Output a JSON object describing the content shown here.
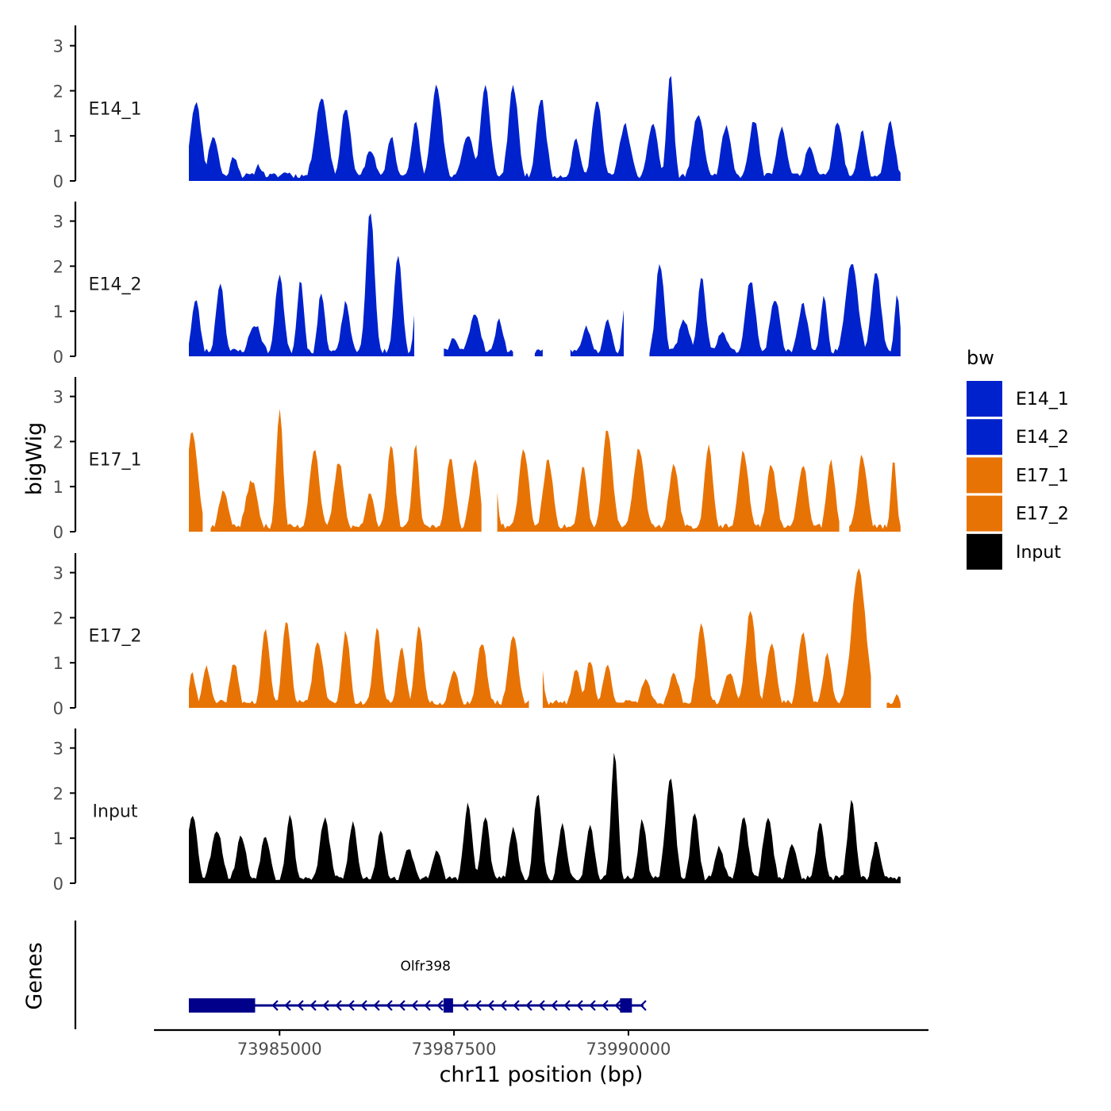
{
  "colors": {
    "E14": "#0022CC",
    "E17": "#E87305",
    "Input": "#000000",
    "gene": "#00008B",
    "axis": "#000000",
    "tick_text": "#4D4D4D"
  },
  "chart_data": {
    "type": "area",
    "ylabel": "bigWig",
    "xlabel": "chr11 position (bp)",
    "genes_label": "Genes",
    "ylim": [
      0,
      3.4
    ],
    "y_ticks": [
      "0",
      "1",
      "2",
      "3"
    ],
    "x_range": [
      73983200,
      73994300
    ],
    "x_data_range": [
      73983700,
      73993900
    ],
    "x_ticks": [
      {
        "value": 73985000,
        "label": "73985000"
      },
      {
        "value": 73987500,
        "label": "73987500"
      },
      {
        "value": 73990000,
        "label": "73990000"
      }
    ],
    "legend": {
      "title": "bw",
      "position": "right",
      "entries": [
        {
          "label": "E14_1",
          "color": "#0022CC"
        },
        {
          "label": "E14_2",
          "color": "#0022CC"
        },
        {
          "label": "E17_1",
          "color": "#E87305"
        },
        {
          "label": "E17_2",
          "color": "#E87305"
        },
        {
          "label": "Input",
          "color": "#000000"
        }
      ]
    },
    "tracks": [
      {
        "name": "E14_1",
        "color": "#0022CC",
        "seed": 11,
        "peaks": [
          [
            73983800,
            1.75,
            80
          ],
          [
            73984050,
            1.0,
            70
          ],
          [
            73984350,
            0.55,
            60
          ],
          [
            73984700,
            0.35,
            60
          ],
          [
            73985100,
            0.2,
            80
          ],
          [
            73985600,
            1.85,
            90
          ],
          [
            73985950,
            1.65,
            70
          ],
          [
            73986300,
            0.7,
            70
          ],
          [
            73986600,
            1.0,
            60
          ],
          [
            73986950,
            1.3,
            60
          ],
          [
            73987250,
            2.1,
            80
          ],
          [
            73987700,
            1.0,
            90
          ],
          [
            73987950,
            2.1,
            70
          ],
          [
            73988350,
            2.1,
            70
          ],
          [
            73988750,
            1.85,
            70
          ],
          [
            73989250,
            0.95,
            60
          ],
          [
            73989550,
            1.85,
            70
          ],
          [
            73989950,
            1.25,
            80
          ],
          [
            73990350,
            1.3,
            70
          ],
          [
            73990600,
            2.4,
            50
          ],
          [
            73991000,
            1.5,
            80
          ],
          [
            73991400,
            1.2,
            70
          ],
          [
            73991800,
            1.35,
            70
          ],
          [
            73992200,
            1.2,
            70
          ],
          [
            73992600,
            0.8,
            70
          ],
          [
            73993000,
            1.35,
            70
          ],
          [
            73993350,
            1.1,
            60
          ],
          [
            73993750,
            1.3,
            70
          ]
        ],
        "gaps": []
      },
      {
        "name": "E14_2",
        "color": "#0022CC",
        "seed": 23,
        "peaks": [
          [
            73983800,
            1.25,
            60
          ],
          [
            73984150,
            1.65,
            60
          ],
          [
            73984650,
            0.7,
            90
          ],
          [
            73985000,
            1.85,
            60
          ],
          [
            73985300,
            1.7,
            50
          ],
          [
            73985600,
            1.45,
            50
          ],
          [
            73985950,
            1.2,
            60
          ],
          [
            73986300,
            3.25,
            60
          ],
          [
            73986700,
            2.25,
            60
          ],
          [
            73987000,
            2.3,
            50
          ],
          [
            73987500,
            0.4,
            60
          ],
          [
            73987800,
            0.95,
            80
          ],
          [
            73988150,
            0.8,
            60
          ],
          [
            73988450,
            0.55,
            50
          ],
          [
            73989000,
            0.3,
            50
          ],
          [
            73989400,
            0.65,
            70
          ],
          [
            73989700,
            0.85,
            60
          ],
          [
            73989950,
            1.15,
            40
          ],
          [
            73990450,
            2.1,
            60
          ],
          [
            73990800,
            0.8,
            80
          ],
          [
            73991050,
            1.75,
            60
          ],
          [
            73991350,
            0.5,
            90
          ],
          [
            73991750,
            1.7,
            70
          ],
          [
            73992100,
            1.3,
            70
          ],
          [
            73992500,
            1.15,
            70
          ],
          [
            73992800,
            1.3,
            50
          ],
          [
            73993200,
            2.1,
            90
          ],
          [
            73993550,
            1.9,
            70
          ],
          [
            73993850,
            1.35,
            40
          ]
        ],
        "gaps": [
          [
            73986950,
            73987350
          ],
          [
            73988350,
            73988650
          ],
          [
            73988800,
            73989150
          ],
          [
            73989950,
            73990300
          ]
        ]
      },
      {
        "name": "E17_1",
        "color": "#E87305",
        "seed": 37,
        "peaks": [
          [
            73983750,
            2.25,
            80
          ],
          [
            73984200,
            0.9,
            70
          ],
          [
            73984600,
            1.15,
            80
          ],
          [
            73985000,
            2.7,
            50
          ],
          [
            73985500,
            1.85,
            70
          ],
          [
            73985850,
            1.55,
            70
          ],
          [
            73986300,
            0.9,
            60
          ],
          [
            73986600,
            1.9,
            60
          ],
          [
            73986950,
            1.9,
            50
          ],
          [
            73987450,
            1.6,
            70
          ],
          [
            73987800,
            1.6,
            70
          ],
          [
            73988050,
            1.65,
            60
          ],
          [
            73988500,
            1.85,
            70
          ],
          [
            73988850,
            1.6,
            70
          ],
          [
            73989350,
            1.45,
            60
          ],
          [
            73989700,
            2.3,
            70
          ],
          [
            73990150,
            1.85,
            80
          ],
          [
            73990650,
            1.5,
            70
          ],
          [
            73991150,
            1.95,
            60
          ],
          [
            73991650,
            1.8,
            70
          ],
          [
            73992050,
            1.5,
            70
          ],
          [
            73992500,
            1.5,
            70
          ],
          [
            73992900,
            1.6,
            60
          ],
          [
            73993350,
            1.7,
            70
          ],
          [
            73993800,
            1.6,
            40
          ]
        ],
        "gaps": [
          [
            73983900,
            73984000
          ],
          [
            73987900,
            73988100
          ],
          [
            73993050,
            73993150
          ]
        ]
      },
      {
        "name": "E17_2",
        "color": "#E87305",
        "seed": 41,
        "peaks": [
          [
            73983750,
            0.75,
            50
          ],
          [
            73983950,
            0.9,
            60
          ],
          [
            73984350,
            1.0,
            60
          ],
          [
            73984800,
            1.75,
            60
          ],
          [
            73985100,
            2.0,
            60
          ],
          [
            73985550,
            1.5,
            70
          ],
          [
            73985950,
            1.7,
            60
          ],
          [
            73986400,
            1.75,
            60
          ],
          [
            73986750,
            1.4,
            60
          ],
          [
            73987000,
            1.8,
            60
          ],
          [
            73987500,
            0.8,
            70
          ],
          [
            73987900,
            1.45,
            70
          ],
          [
            73988350,
            1.65,
            70
          ],
          [
            73988700,
            1.65,
            60
          ],
          [
            73989250,
            0.9,
            60
          ],
          [
            73989450,
            1.05,
            60
          ],
          [
            73989700,
            1.0,
            60
          ],
          [
            73990250,
            0.65,
            70
          ],
          [
            73990650,
            0.8,
            70
          ],
          [
            73991050,
            1.85,
            70
          ],
          [
            73991450,
            0.8,
            80
          ],
          [
            73991750,
            2.2,
            70
          ],
          [
            73992050,
            1.45,
            70
          ],
          [
            73992500,
            1.65,
            70
          ],
          [
            73992850,
            1.2,
            60
          ],
          [
            73993300,
            3.1,
            100
          ],
          [
            73993850,
            0.35,
            40
          ]
        ],
        "gaps": [
          [
            73988600,
            73988750
          ],
          [
            73993500,
            73993700
          ]
        ]
      },
      {
        "name": "Input",
        "color": "#000000",
        "seed": 53,
        "peaks": [
          [
            73983750,
            1.55,
            70
          ],
          [
            73984100,
            1.2,
            80
          ],
          [
            73984450,
            1.05,
            70
          ],
          [
            73984800,
            1.05,
            70
          ],
          [
            73985150,
            1.5,
            60
          ],
          [
            73985650,
            1.45,
            70
          ],
          [
            73986050,
            1.35,
            60
          ],
          [
            73986450,
            1.2,
            60
          ],
          [
            73986850,
            0.8,
            70
          ],
          [
            73987250,
            0.7,
            70
          ],
          [
            73987700,
            1.75,
            60
          ],
          [
            73987950,
            1.5,
            60
          ],
          [
            73988350,
            1.25,
            60
          ],
          [
            73988700,
            2.0,
            60
          ],
          [
            73989050,
            1.3,
            60
          ],
          [
            73989450,
            1.25,
            60
          ],
          [
            73989800,
            2.95,
            50
          ],
          [
            73990200,
            1.4,
            60
          ],
          [
            73990600,
            2.35,
            70
          ],
          [
            73990950,
            1.55,
            60
          ],
          [
            73991300,
            0.8,
            70
          ],
          [
            73991650,
            1.45,
            70
          ],
          [
            73992000,
            1.45,
            70
          ],
          [
            73992350,
            0.85,
            70
          ],
          [
            73992750,
            1.4,
            60
          ],
          [
            73993200,
            1.85,
            60
          ],
          [
            73993550,
            0.95,
            60
          ]
        ],
        "gaps": []
      }
    ],
    "genes": [
      {
        "name": "Olfr398",
        "start": 73983700,
        "end": 73990100,
        "strand": "-",
        "exons": [
          [
            73983700,
            73984650
          ],
          [
            73987350,
            73987480
          ],
          [
            73989880,
            73990050
          ]
        ]
      }
    ]
  }
}
